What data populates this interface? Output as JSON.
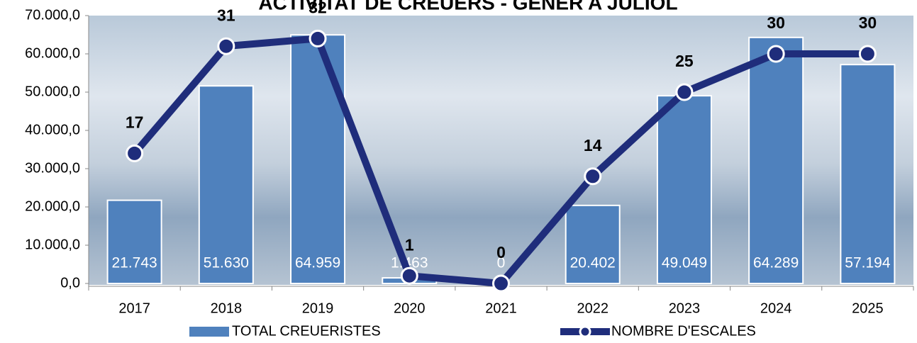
{
  "chart_data": {
    "type": "bar_line",
    "title": "ACTIVITAT DE CREUERS - GENER A JULIOL",
    "categories": [
      "2017",
      "2018",
      "2019",
      "2020",
      "2021",
      "2022",
      "2023",
      "2024",
      "2025"
    ],
    "series": [
      {
        "name": "TOTAL CREUERISTES",
        "type": "bar",
        "color": "#4f81bd",
        "values": [
          21743,
          51630,
          64959,
          1463,
          0,
          20402,
          49049,
          64289,
          57194
        ],
        "value_labels": [
          "21.743",
          "51.630",
          "64.959",
          "1.463",
          "0",
          "20.402",
          "49.049",
          "64.289",
          "57.194"
        ]
      },
      {
        "name": "NOMBRE D'ESCALES",
        "type": "line",
        "axis": "y2",
        "color": "#1f2d7b",
        "values": [
          17,
          31,
          32,
          1,
          0,
          14,
          25,
          30,
          30
        ]
      }
    ],
    "ylim": [
      0,
      70000
    ],
    "yticks": [
      {
        "value": 0,
        "label": "0,0"
      },
      {
        "value": 10000,
        "label": "10.000,0"
      },
      {
        "value": 20000,
        "label": "20.000,0"
      },
      {
        "value": 30000,
        "label": "30.000,0"
      },
      {
        "value": 40000,
        "label": "40.000,0"
      },
      {
        "value": 50000,
        "label": "50.000,0"
      },
      {
        "value": 60000,
        "label": "60.000,0"
      },
      {
        "value": 70000,
        "label": "70.000,0"
      }
    ],
    "y2lim": [
      0,
      35
    ],
    "legend": "bottom"
  }
}
